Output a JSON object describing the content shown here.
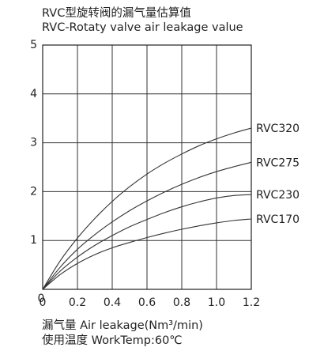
{
  "header": {
    "title_cn": "RVC型旋转阀的漏气量估算值",
    "title_en": "RVC-Rotaty valve air leakage value"
  },
  "footer": {
    "xlabel": "漏气量  Air leakage(Nm³/min)",
    "condition": "使用温度  WorkTemp:60℃"
  },
  "chart_data": {
    "type": "line",
    "title": "RVC-Rotaty valve air leakage value",
    "xlabel": "漏气量  Air leakage(Nm³/min)",
    "ylabel": "",
    "xlim": [
      0,
      1.2
    ],
    "ylim": [
      0,
      5
    ],
    "x_ticks": [
      "0",
      "0.2",
      "0.4",
      "0.6",
      "0.8",
      "1.0",
      "1.2"
    ],
    "x_tick_values": [
      0,
      0.2,
      0.4,
      0.6,
      0.8,
      1.0,
      1.2
    ],
    "y_ticks": [
      "1",
      "2",
      "3",
      "4",
      "5"
    ],
    "y_tick_values": [
      1,
      2,
      3,
      4,
      5
    ],
    "grid": true,
    "line_color": "#333333",
    "series": [
      {
        "name": "RVC320",
        "x": [
          0,
          0.1,
          0.2,
          0.3,
          0.4,
          0.5,
          0.6,
          0.7,
          0.8,
          0.9,
          1.0,
          1.1,
          1.2
        ],
        "values": [
          0,
          0.58,
          1.05,
          1.45,
          1.8,
          2.1,
          2.36,
          2.58,
          2.77,
          2.94,
          3.08,
          3.2,
          3.3
        ]
      },
      {
        "name": "RVC275",
        "x": [
          0,
          0.1,
          0.2,
          0.3,
          0.4,
          0.5,
          0.6,
          0.7,
          0.8,
          0.9,
          1.0,
          1.1,
          1.2
        ],
        "values": [
          0,
          0.45,
          0.82,
          1.12,
          1.38,
          1.61,
          1.81,
          1.99,
          2.15,
          2.29,
          2.41,
          2.51,
          2.6
        ]
      },
      {
        "name": "RVC230",
        "x": [
          0,
          0.1,
          0.2,
          0.3,
          0.4,
          0.5,
          0.6,
          0.7,
          0.8,
          0.9,
          1.0,
          1.1,
          1.2
        ],
        "values": [
          0,
          0.37,
          0.66,
          0.9,
          1.1,
          1.28,
          1.43,
          1.57,
          1.69,
          1.79,
          1.87,
          1.92,
          1.94
        ]
      },
      {
        "name": "RVC170",
        "x": [
          0,
          0.1,
          0.2,
          0.3,
          0.4,
          0.5,
          0.6,
          0.7,
          0.8,
          0.9,
          1.0,
          1.1,
          1.2
        ],
        "values": [
          0,
          0.3,
          0.53,
          0.71,
          0.85,
          0.96,
          1.06,
          1.15,
          1.23,
          1.3,
          1.36,
          1.41,
          1.44
        ]
      }
    ]
  }
}
